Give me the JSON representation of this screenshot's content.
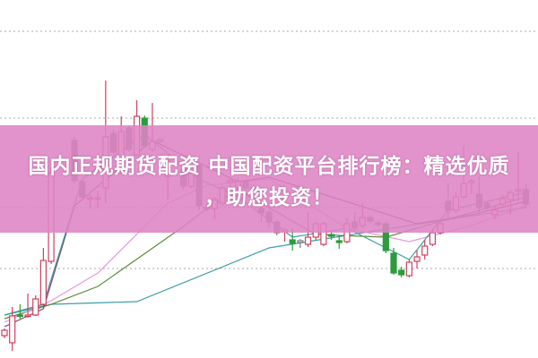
{
  "title": {
    "line1": "国内正规期货配资 中国配资平台排行榜：精选优质",
    "line2": "，助您投资！"
  },
  "colors": {
    "up": "#d0405e",
    "down": "#7a7a7a",
    "green": "#2a9d3a",
    "banner": "#de84c4",
    "grid": "#a8a8a8"
  },
  "chart_data": {
    "type": "candlestick",
    "title": "",
    "xlabel": "",
    "ylabel": "",
    "ylim": [
      0,
      100
    ],
    "grid": true,
    "grid_levels": [
      25,
      42,
      67,
      91.25
    ],
    "candles": [
      {
        "t": 0,
        "o": 6.25,
        "h": 8.25,
        "l": 5.5,
        "c": 7.75,
        "color": "red"
      },
      {
        "t": 1,
        "o": 4.25,
        "h": 14.25,
        "l": 2,
        "c": 11.75,
        "color": "red"
      },
      {
        "t": 2,
        "o": 12,
        "h": 15,
        "l": 11,
        "c": 11.9,
        "color": "green"
      },
      {
        "t": 3,
        "o": 11.75,
        "h": 18,
        "l": 11.25,
        "c": 12,
        "color": "red"
      },
      {
        "t": 4,
        "o": 12,
        "h": 17.5,
        "l": 11.75,
        "c": 16.5,
        "color": "red"
      },
      {
        "t": 5,
        "o": 15,
        "h": 30.75,
        "l": 14.5,
        "c": 27.25,
        "color": "red"
      },
      {
        "t": 6,
        "o": 27,
        "h": 53.25,
        "l": 26.25,
        "c": 51.75,
        "color": "red"
      },
      {
        "t": 9,
        "o": 60.75,
        "h": 61.75,
        "l": 48.75,
        "c": 49.5,
        "color": "gray"
      },
      {
        "t": 10,
        "o": 49.25,
        "h": 50,
        "l": 44.5,
        "c": 45,
        "color": "gray"
      },
      {
        "t": 11,
        "o": 44.5,
        "h": 45.75,
        "l": 41.75,
        "c": 44.75,
        "color": "red"
      },
      {
        "t": 12,
        "o": 44.5,
        "h": 46.75,
        "l": 41.75,
        "c": 44.75,
        "color": "red"
      },
      {
        "t": 13,
        "o": 47.5,
        "h": 77.5,
        "l": 43.25,
        "c": 61.75,
        "color": "red"
      },
      {
        "t": 14,
        "o": 62.75,
        "h": 63.75,
        "l": 57,
        "c": 57.5,
        "color": "gray"
      },
      {
        "t": 15,
        "o": 51.75,
        "h": 67.5,
        "l": 51.25,
        "c": 63.25,
        "color": "red"
      },
      {
        "t": 16,
        "o": 64.25,
        "h": 65,
        "l": 57.5,
        "c": 58.25,
        "color": "gray"
      },
      {
        "t": 17,
        "o": 56.75,
        "h": 72,
        "l": 56.25,
        "c": 67.5,
        "color": "red"
      },
      {
        "t": 18,
        "o": 67,
        "h": 67.75,
        "l": 58.75,
        "c": 59.25,
        "color": "green"
      },
      {
        "t": 19,
        "o": 58.25,
        "h": 71.25,
        "l": 57.5,
        "c": 60.5,
        "color": "red"
      },
      {
        "t": 20,
        "o": 60.5,
        "h": 61.25,
        "l": 60,
        "c": 61,
        "color": "gray"
      },
      {
        "t": 21,
        "o": 50.75,
        "h": 56.25,
        "l": 44.25,
        "c": 55,
        "color": "red"
      },
      {
        "t": 23,
        "o": 52.5,
        "h": 53.75,
        "l": 47,
        "c": 48,
        "color": "gray"
      },
      {
        "t": 24,
        "o": 48,
        "h": 52.5,
        "l": 47.5,
        "c": 51.75,
        "color": "red"
      },
      {
        "t": 25,
        "o": 53.75,
        "h": 55,
        "l": 41.25,
        "c": 42.5,
        "color": "gray"
      },
      {
        "t": 26,
        "o": 41.75,
        "h": 43,
        "l": 41,
        "c": 42,
        "color": "red"
      },
      {
        "t": 27,
        "o": 41.75,
        "h": 45,
        "l": 38.75,
        "c": 44.25,
        "color": "red"
      },
      {
        "t": 28,
        "o": 43.25,
        "h": 48.25,
        "l": 42.5,
        "c": 47.5,
        "color": "red"
      },
      {
        "t": 29,
        "o": 49,
        "h": 50.5,
        "l": 48,
        "c": 49.5,
        "color": "red"
      },
      {
        "t": 30,
        "o": 47.5,
        "h": 50.5,
        "l": 47,
        "c": 49.25,
        "color": "red"
      },
      {
        "t": 31,
        "o": 49.25,
        "h": 50,
        "l": 47,
        "c": 47.5,
        "color": "gray"
      },
      {
        "t": 32,
        "o": 47.5,
        "h": 48.5,
        "l": 46.75,
        "c": 47.75,
        "color": "red"
      },
      {
        "t": 33,
        "o": 41.75,
        "h": 43,
        "l": 38,
        "c": 40.5,
        "color": "gray"
      },
      {
        "t": 34,
        "o": 40.75,
        "h": 42,
        "l": 36.25,
        "c": 38,
        "color": "gray"
      },
      {
        "t": 35,
        "o": 38,
        "h": 38.75,
        "l": 34.25,
        "c": 35,
        "color": "gray"
      },
      {
        "t": 36,
        "o": 35.25,
        "h": 36.25,
        "l": 32.5,
        "c": 35.75,
        "color": "red"
      },
      {
        "t": 37,
        "o": 33,
        "h": 36.25,
        "l": 30,
        "c": 32,
        "color": "green"
      },
      {
        "t": 38,
        "o": 32.25,
        "h": 33.25,
        "l": 30.75,
        "c": 32.75,
        "color": "gray"
      },
      {
        "t": 39,
        "o": 31.75,
        "h": 40.75,
        "l": 31,
        "c": 33.75,
        "color": "red"
      },
      {
        "t": 40,
        "o": 33.75,
        "h": 38,
        "l": 33,
        "c": 37.5,
        "color": "red"
      },
      {
        "t": 41,
        "o": 31.75,
        "h": 38,
        "l": 31.25,
        "c": 37.5,
        "color": "red"
      },
      {
        "t": 42,
        "o": 34.5,
        "h": 35.5,
        "l": 33,
        "c": 34,
        "color": "green"
      },
      {
        "t": 43,
        "o": 32.75,
        "h": 34.25,
        "l": 30.5,
        "c": 32.25,
        "color": "green"
      },
      {
        "t": 44,
        "o": 32.5,
        "h": 39.25,
        "l": 32,
        "c": 37.5,
        "color": "red"
      },
      {
        "t": 45,
        "o": 38,
        "h": 40.75,
        "l": 35.5,
        "c": 36.25,
        "color": "gray"
      },
      {
        "t": 46,
        "o": 37,
        "h": 43.25,
        "l": 36.25,
        "c": 39.25,
        "color": "red"
      },
      {
        "t": 47,
        "o": 39.25,
        "h": 40,
        "l": 37.5,
        "c": 38.25,
        "color": "gray"
      },
      {
        "t": 48,
        "o": 37.75,
        "h": 38.5,
        "l": 36.75,
        "c": 37.25,
        "color": "gray"
      },
      {
        "t": 49,
        "o": 37.5,
        "h": 38,
        "l": 29.25,
        "c": 30,
        "color": "green"
      },
      {
        "t": 50,
        "o": 29.25,
        "h": 30.75,
        "l": 23.25,
        "c": 23.75,
        "color": "green"
      },
      {
        "t": 51,
        "o": 24.5,
        "h": 25.5,
        "l": 22.5,
        "c": 23.25,
        "color": "green"
      },
      {
        "t": 52,
        "o": 23,
        "h": 27.5,
        "l": 22.5,
        "c": 26.75,
        "color": "red"
      },
      {
        "t": 53,
        "o": 27,
        "h": 30,
        "l": 25,
        "c": 28.25,
        "color": "red"
      },
      {
        "t": 54,
        "o": 28.75,
        "h": 33,
        "l": 27.5,
        "c": 31.25,
        "color": "red"
      },
      {
        "t": 55,
        "o": 31.75,
        "h": 36.25,
        "l": 31.25,
        "c": 35,
        "color": "red"
      },
      {
        "t": 56,
        "o": 35,
        "h": 38,
        "l": 34.5,
        "c": 37.5,
        "color": "red"
      },
      {
        "t": 57,
        "o": 43.75,
        "h": 48.75,
        "l": 38.25,
        "c": 41.25,
        "color": "gray"
      },
      {
        "t": 58,
        "o": 41.25,
        "h": 46.25,
        "l": 40.5,
        "c": 45,
        "color": "red"
      },
      {
        "t": 59,
        "o": 45,
        "h": 59.25,
        "l": 44.5,
        "c": 48.75,
        "color": "red"
      },
      {
        "t": 60,
        "o": 49,
        "h": 50,
        "l": 45.75,
        "c": 49.5,
        "color": "red"
      },
      {
        "t": 61,
        "o": 45.75,
        "h": 50.75,
        "l": 40,
        "c": 42,
        "color": "gray"
      },
      {
        "t": 62,
        "o": 43.25,
        "h": 43.75,
        "l": 41.25,
        "c": 42,
        "color": "gray"
      },
      {
        "t": 63,
        "o": 40,
        "h": 42.5,
        "l": 38.75,
        "c": 41.25,
        "color": "red"
      },
      {
        "t": 64,
        "o": 43,
        "h": 45.5,
        "l": 42,
        "c": 44.5,
        "color": "red"
      },
      {
        "t": 65,
        "o": 44.25,
        "h": 47,
        "l": 40,
        "c": 46.25,
        "color": "red"
      },
      {
        "t": 66,
        "o": 46.75,
        "h": 57.5,
        "l": 43.75,
        "c": 47,
        "color": "red"
      },
      {
        "t": 67,
        "o": 47,
        "h": 48.75,
        "l": 42,
        "c": 43,
        "color": "gray"
      }
    ],
    "moving_averages": [
      {
        "color": "#3a9fa6",
        "points": [
          [
            0,
            12
          ],
          [
            6,
            15
          ],
          [
            17,
            15.75
          ],
          [
            34,
            30.75
          ],
          [
            49,
            36
          ],
          [
            67,
            42
          ]
        ]
      },
      {
        "color": "#5f8a3c",
        "points": [
          [
            0,
            11
          ],
          [
            6,
            15
          ],
          [
            12,
            20
          ],
          [
            23,
            36.75
          ],
          [
            26,
            41.75
          ],
          [
            30,
            47
          ],
          [
            40,
            34.5
          ],
          [
            49,
            33.75
          ],
          [
            55,
            37.5
          ],
          [
            67,
            45
          ]
        ]
      },
      {
        "color": "#e49ad6",
        "points": [
          [
            0,
            10
          ],
          [
            6,
            16
          ],
          [
            12,
            23.75
          ],
          [
            21,
            43.25
          ],
          [
            26,
            48.25
          ],
          [
            34,
            50
          ],
          [
            44,
            36.25
          ],
          [
            52,
            32.5
          ],
          [
            60,
            37
          ],
          [
            67,
            42.5
          ]
        ]
      },
      {
        "color": "#7e3f6e",
        "points": [
          [
            0,
            8.75
          ],
          [
            5,
            13.75
          ],
          [
            9,
            42.5
          ],
          [
            19,
            60.75
          ],
          [
            30,
            49.25
          ],
          [
            34,
            50.5
          ],
          [
            53,
            37.5
          ],
          [
            60,
            40
          ],
          [
            67,
            43.75
          ]
        ]
      },
      {
        "color": "#3aa0a0",
        "points": [
          [
            0,
            12
          ],
          [
            5,
            15
          ],
          [
            10,
            50
          ],
          [
            18,
            62.5
          ],
          [
            25,
            50
          ],
          [
            30,
            45
          ],
          [
            37,
            33.75
          ],
          [
            44,
            36.25
          ],
          [
            52,
            27.5
          ],
          [
            57,
            41.25
          ],
          [
            67,
            46.25
          ]
        ]
      }
    ]
  }
}
